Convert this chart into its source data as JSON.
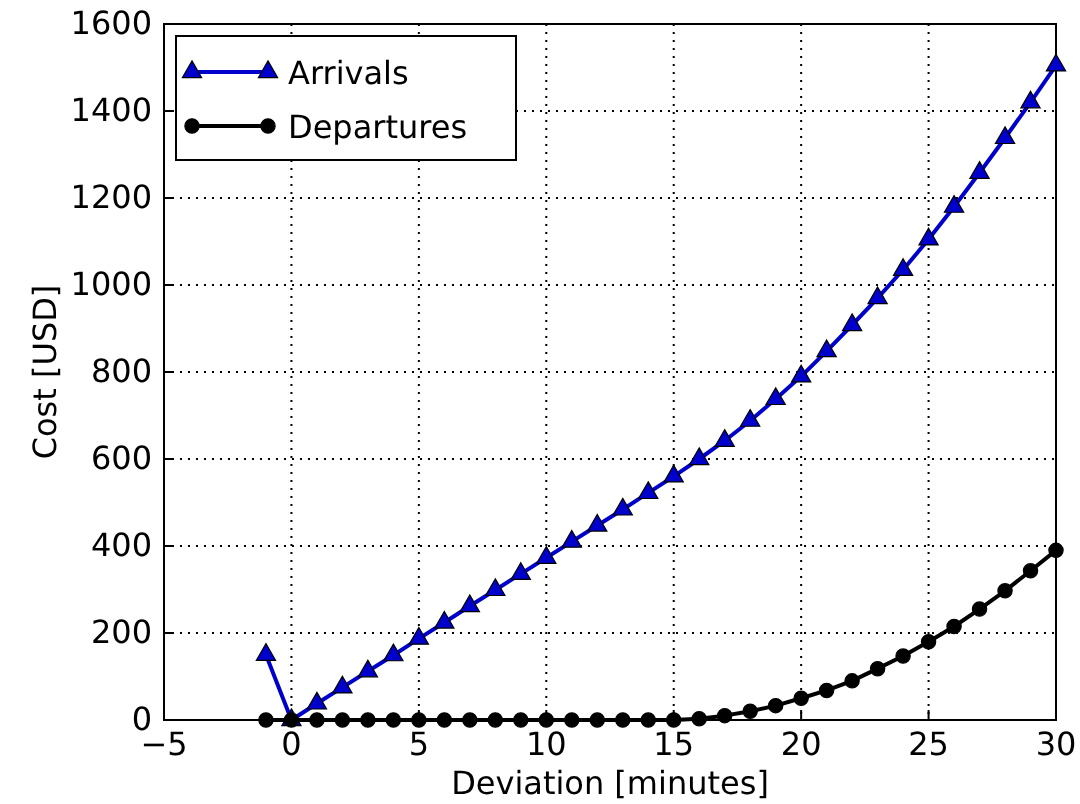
{
  "chart_data": {
    "type": "line",
    "xlabel": "Deviation [minutes]",
    "ylabel": "Cost [USD]",
    "x": [
      -1,
      0,
      1,
      2,
      3,
      4,
      5,
      6,
      7,
      8,
      9,
      10,
      11,
      12,
      13,
      14,
      15,
      16,
      17,
      18,
      19,
      20,
      21,
      22,
      23,
      24,
      25,
      26,
      27,
      28,
      29,
      30
    ],
    "series": [
      {
        "name": "Arrivals",
        "color": "#0000cc",
        "marker": "triangle",
        "values": [
          150,
          0,
          38,
          75,
          112,
          149,
          187,
          224,
          262,
          299,
          336,
          373,
          410,
          447,
          484,
          522,
          560,
          600,
          642,
          688,
          738,
          790,
          848,
          908,
          970,
          1035,
          1105,
          1180,
          1258,
          1338,
          1420,
          1505
        ]
      },
      {
        "name": "Departures",
        "color": "#000000",
        "marker": "circle",
        "values": [
          0,
          0,
          0,
          0,
          0,
          0,
          0,
          0,
          0,
          0,
          0,
          0,
          0,
          0,
          0,
          0,
          0,
          3,
          10,
          20,
          33,
          50,
          68,
          90,
          118,
          147,
          180,
          215,
          255,
          297,
          343,
          390
        ]
      }
    ],
    "xlim": [
      -5,
      30
    ],
    "xticks": [
      {
        "value": -5,
        "label": "−5"
      },
      0,
      5,
      10,
      15,
      20,
      25,
      30
    ],
    "ylim": [
      0,
      1600
    ],
    "yticks": [
      0,
      200,
      400,
      600,
      800,
      1000,
      1200,
      1400,
      1600
    ],
    "grid": true,
    "legend": "top left",
    "line_style": "solid"
  }
}
